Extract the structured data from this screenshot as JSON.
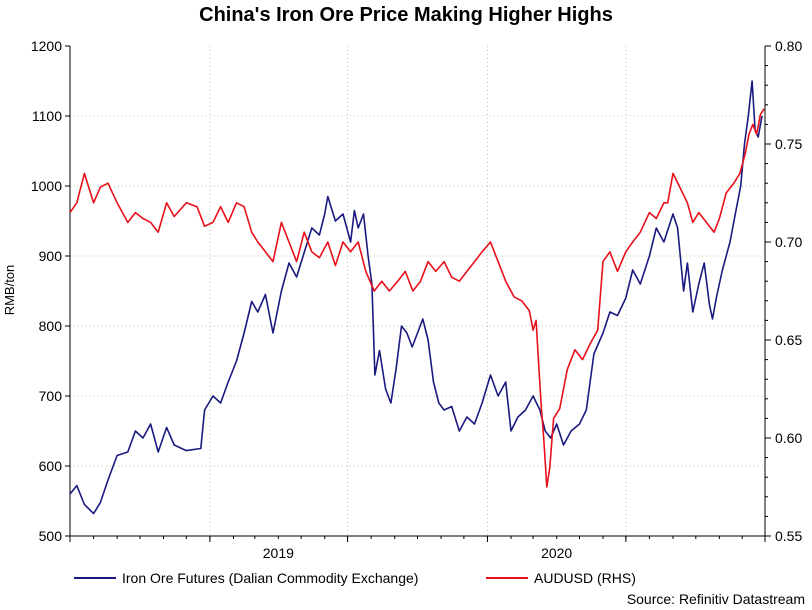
{
  "chart_data": {
    "type": "line",
    "title": "China's Iron Ore Price Making Higher Highs",
    "ylabel_left": "RMB/ton",
    "ylabel_right": "",
    "ylim_left": [
      500,
      1200
    ],
    "ylim_right": [
      0.55,
      0.8
    ],
    "yticks_left": [
      "500",
      "600",
      "700",
      "800",
      "900",
      "1000",
      "1100",
      "1200"
    ],
    "yticks_right": [
      "0.55",
      "0.60",
      "0.65",
      "0.70",
      "0.75",
      "0.80"
    ],
    "x_labels": [
      "2019",
      "2020"
    ],
    "x_range": [
      "2018-07-01",
      "2020-12-31"
    ],
    "grid": true,
    "legend_position": "bottom",
    "source": "Source: Refinitiv Datastream",
    "colors": {
      "iron": "#1a1a80",
      "aud": "#e8101a",
      "grid": "#a8d0a0"
    },
    "series": [
      {
        "name": "Iron Ore Futures (Dalian Commodity Exchange)",
        "axis": "left",
        "points": [
          [
            "2018-07-01",
            560
          ],
          [
            "2018-07-10",
            572
          ],
          [
            "2018-07-20",
            545
          ],
          [
            "2018-08-01",
            532
          ],
          [
            "2018-08-10",
            548
          ],
          [
            "2018-08-20",
            580
          ],
          [
            "2018-09-01",
            615
          ],
          [
            "2018-09-15",
            620
          ],
          [
            "2018-09-25",
            650
          ],
          [
            "2018-10-05",
            640
          ],
          [
            "2018-10-15",
            660
          ],
          [
            "2018-10-25",
            620
          ],
          [
            "2018-11-05",
            655
          ],
          [
            "2018-11-15",
            630
          ],
          [
            "2018-12-01",
            622
          ],
          [
            "2018-12-20",
            625
          ],
          [
            "2018-12-25",
            680
          ],
          [
            "2019-01-05",
            700
          ],
          [
            "2019-01-15",
            690
          ],
          [
            "2019-01-25",
            720
          ],
          [
            "2019-02-05",
            750
          ],
          [
            "2019-02-15",
            790
          ],
          [
            "2019-02-25",
            835
          ],
          [
            "2019-03-05",
            820
          ],
          [
            "2019-03-15",
            845
          ],
          [
            "2019-03-25",
            790
          ],
          [
            "2019-04-05",
            850
          ],
          [
            "2019-04-15",
            890
          ],
          [
            "2019-04-25",
            870
          ],
          [
            "2019-05-05",
            905
          ],
          [
            "2019-05-15",
            940
          ],
          [
            "2019-05-25",
            930
          ],
          [
            "2019-06-01",
            960
          ],
          [
            "2019-06-05",
            985
          ],
          [
            "2019-06-15",
            950
          ],
          [
            "2019-06-25",
            960
          ],
          [
            "2019-07-05",
            920
          ],
          [
            "2019-07-10",
            965
          ],
          [
            "2019-07-15",
            940
          ],
          [
            "2019-07-22",
            960
          ],
          [
            "2019-07-28",
            900
          ],
          [
            "2019-08-02",
            860
          ],
          [
            "2019-08-06",
            730
          ],
          [
            "2019-08-12",
            765
          ],
          [
            "2019-08-20",
            710
          ],
          [
            "2019-08-27",
            690
          ],
          [
            "2019-09-03",
            740
          ],
          [
            "2019-09-10",
            800
          ],
          [
            "2019-09-17",
            790
          ],
          [
            "2019-09-24",
            770
          ],
          [
            "2019-10-01",
            790
          ],
          [
            "2019-10-08",
            810
          ],
          [
            "2019-10-15",
            780
          ],
          [
            "2019-10-22",
            720
          ],
          [
            "2019-10-29",
            690
          ],
          [
            "2019-11-05",
            680
          ],
          [
            "2019-11-15",
            685
          ],
          [
            "2019-11-25",
            650
          ],
          [
            "2019-12-05",
            670
          ],
          [
            "2019-12-15",
            660
          ],
          [
            "2019-12-25",
            690
          ],
          [
            "2020-01-05",
            730
          ],
          [
            "2020-01-15",
            700
          ],
          [
            "2020-01-25",
            720
          ],
          [
            "2020-02-01",
            650
          ],
          [
            "2020-02-10",
            670
          ],
          [
            "2020-02-20",
            680
          ],
          [
            "2020-03-01",
            700
          ],
          [
            "2020-03-10",
            680
          ],
          [
            "2020-03-17",
            650
          ],
          [
            "2020-03-24",
            640
          ],
          [
            "2020-04-01",
            660
          ],
          [
            "2020-04-10",
            630
          ],
          [
            "2020-04-20",
            650
          ],
          [
            "2020-05-01",
            660
          ],
          [
            "2020-05-10",
            680
          ],
          [
            "2020-05-20",
            760
          ],
          [
            "2020-06-01",
            790
          ],
          [
            "2020-06-10",
            820
          ],
          [
            "2020-06-20",
            815
          ],
          [
            "2020-07-01",
            840
          ],
          [
            "2020-07-10",
            880
          ],
          [
            "2020-07-20",
            860
          ],
          [
            "2020-08-01",
            900
          ],
          [
            "2020-08-10",
            940
          ],
          [
            "2020-08-20",
            920
          ],
          [
            "2020-09-01",
            960
          ],
          [
            "2020-09-07",
            940
          ],
          [
            "2020-09-15",
            850
          ],
          [
            "2020-09-20",
            890
          ],
          [
            "2020-09-27",
            820
          ],
          [
            "2020-10-05",
            860
          ],
          [
            "2020-10-12",
            890
          ],
          [
            "2020-10-19",
            830
          ],
          [
            "2020-10-23",
            810
          ],
          [
            "2020-10-28",
            840
          ],
          [
            "2020-11-05",
            880
          ],
          [
            "2020-11-15",
            920
          ],
          [
            "2020-11-22",
            960
          ],
          [
            "2020-11-29",
            1000
          ],
          [
            "2020-12-04",
            1060
          ],
          [
            "2020-12-09",
            1100
          ],
          [
            "2020-12-14",
            1150
          ],
          [
            "2020-12-18",
            1080
          ],
          [
            "2020-12-22",
            1070
          ],
          [
            "2020-12-27",
            1100
          ]
        ]
      },
      {
        "name": "AUDUSD (RHS)",
        "axis": "right",
        "points": [
          [
            "2018-07-01",
            0.715
          ],
          [
            "2018-07-10",
            0.72
          ],
          [
            "2018-07-20",
            0.735
          ],
          [
            "2018-08-01",
            0.72
          ],
          [
            "2018-08-10",
            0.728
          ],
          [
            "2018-08-20",
            0.73
          ],
          [
            "2018-09-01",
            0.72
          ],
          [
            "2018-09-15",
            0.71
          ],
          [
            "2018-09-25",
            0.715
          ],
          [
            "2018-10-05",
            0.712
          ],
          [
            "2018-10-15",
            0.71
          ],
          [
            "2018-10-25",
            0.705
          ],
          [
            "2018-11-05",
            0.72
          ],
          [
            "2018-11-15",
            0.713
          ],
          [
            "2018-12-01",
            0.72
          ],
          [
            "2018-12-15",
            0.718
          ],
          [
            "2018-12-25",
            0.708
          ],
          [
            "2019-01-05",
            0.71
          ],
          [
            "2019-01-15",
            0.718
          ],
          [
            "2019-01-25",
            0.71
          ],
          [
            "2019-02-05",
            0.72
          ],
          [
            "2019-02-15",
            0.718
          ],
          [
            "2019-02-25",
            0.705
          ],
          [
            "2019-03-05",
            0.7
          ],
          [
            "2019-03-15",
            0.695
          ],
          [
            "2019-03-25",
            0.69
          ],
          [
            "2019-04-05",
            0.71
          ],
          [
            "2019-04-15",
            0.7
          ],
          [
            "2019-04-25",
            0.69
          ],
          [
            "2019-05-05",
            0.705
          ],
          [
            "2019-05-15",
            0.695
          ],
          [
            "2019-05-25",
            0.692
          ],
          [
            "2019-06-05",
            0.7
          ],
          [
            "2019-06-15",
            0.688
          ],
          [
            "2019-06-25",
            0.7
          ],
          [
            "2019-07-05",
            0.695
          ],
          [
            "2019-07-15",
            0.7
          ],
          [
            "2019-07-25",
            0.685
          ],
          [
            "2019-08-05",
            0.675
          ],
          [
            "2019-08-15",
            0.68
          ],
          [
            "2019-08-25",
            0.675
          ],
          [
            "2019-09-05",
            0.68
          ],
          [
            "2019-09-15",
            0.685
          ],
          [
            "2019-09-25",
            0.675
          ],
          [
            "2019-10-05",
            0.68
          ],
          [
            "2019-10-15",
            0.69
          ],
          [
            "2019-10-25",
            0.685
          ],
          [
            "2019-11-05",
            0.69
          ],
          [
            "2019-11-15",
            0.682
          ],
          [
            "2019-11-25",
            0.68
          ],
          [
            "2019-12-05",
            0.685
          ],
          [
            "2019-12-15",
            0.69
          ],
          [
            "2019-12-25",
            0.695
          ],
          [
            "2020-01-05",
            0.7
          ],
          [
            "2020-01-15",
            0.69
          ],
          [
            "2020-01-25",
            0.68
          ],
          [
            "2020-02-05",
            0.672
          ],
          [
            "2020-02-15",
            0.67
          ],
          [
            "2020-02-25",
            0.665
          ],
          [
            "2020-03-01",
            0.655
          ],
          [
            "2020-03-05",
            0.66
          ],
          [
            "2020-03-08",
            0.64
          ],
          [
            "2020-03-12",
            0.615
          ],
          [
            "2020-03-15",
            0.6
          ],
          [
            "2020-03-19",
            0.575
          ],
          [
            "2020-03-23",
            0.585
          ],
          [
            "2020-03-28",
            0.61
          ],
          [
            "2020-04-05",
            0.615
          ],
          [
            "2020-04-15",
            0.635
          ],
          [
            "2020-04-25",
            0.645
          ],
          [
            "2020-05-05",
            0.64
          ],
          [
            "2020-05-15",
            0.648
          ],
          [
            "2020-05-25",
            0.655
          ],
          [
            "2020-06-01",
            0.69
          ],
          [
            "2020-06-10",
            0.695
          ],
          [
            "2020-06-20",
            0.685
          ],
          [
            "2020-07-01",
            0.695
          ],
          [
            "2020-07-10",
            0.7
          ],
          [
            "2020-07-20",
            0.705
          ],
          [
            "2020-08-01",
            0.715
          ],
          [
            "2020-08-10",
            0.712
          ],
          [
            "2020-08-20",
            0.72
          ],
          [
            "2020-08-25",
            0.72
          ],
          [
            "2020-09-01",
            0.735
          ],
          [
            "2020-09-10",
            0.728
          ],
          [
            "2020-09-20",
            0.72
          ],
          [
            "2020-09-27",
            0.71
          ],
          [
            "2020-10-05",
            0.715
          ],
          [
            "2020-10-15",
            0.71
          ],
          [
            "2020-10-25",
            0.705
          ],
          [
            "2020-11-01",
            0.712
          ],
          [
            "2020-11-10",
            0.725
          ],
          [
            "2020-11-20",
            0.73
          ],
          [
            "2020-11-28",
            0.735
          ],
          [
            "2020-12-05",
            0.745
          ],
          [
            "2020-12-10",
            0.755
          ],
          [
            "2020-12-15",
            0.76
          ],
          [
            "2020-12-20",
            0.755
          ],
          [
            "2020-12-25",
            0.765
          ],
          [
            "2020-12-30",
            0.768
          ]
        ]
      }
    ]
  }
}
